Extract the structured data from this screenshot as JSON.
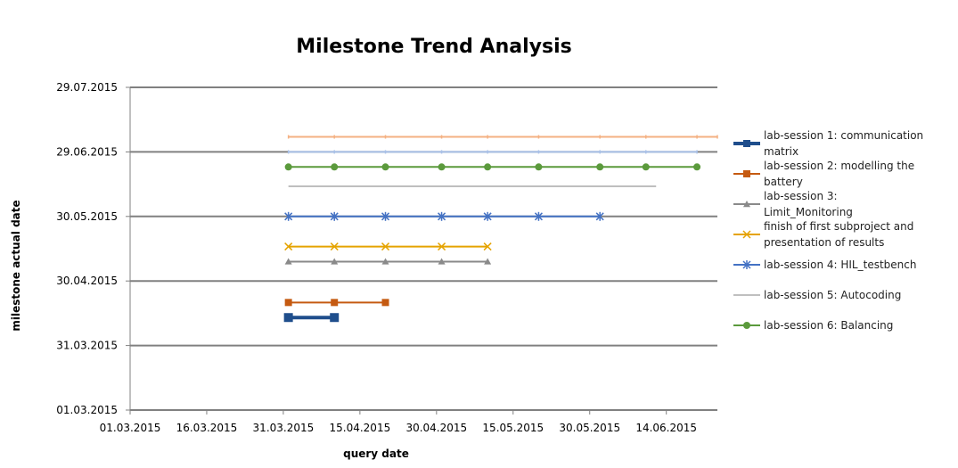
{
  "chart_data": {
    "type": "line",
    "title": "Milestone Trend Analysis",
    "xlabel": "query date",
    "ylabel": "milestone actual date",
    "x_ticks": [
      "01.03.2015",
      "16.03.2015",
      "31.03.2015",
      "15.04.2015",
      "30.04.2015",
      "15.05.2015",
      "30.05.2015",
      "14.06.2015"
    ],
    "y_ticks": [
      "01.03.2015",
      "31.03.2015",
      "30.04.2015",
      "30.05.2015",
      "29.06.2015",
      "29.07.2015"
    ],
    "xlim": [
      "2015-03-01",
      "2015-06-24"
    ],
    "ylim": [
      "2015-03-01",
      "2015-07-29"
    ],
    "grid": "horizontal",
    "legend_position": "right",
    "series": [
      {
        "name": "lab-session 1: communication matrix",
        "color": "#1f4e8c",
        "marker": "square",
        "line_width": 4,
        "x": [
          "2015-04-01",
          "2015-04-10"
        ],
        "y": [
          "2015-04-13",
          "2015-04-13"
        ]
      },
      {
        "name": "lab-session 2: modelling the battery",
        "color": "#c55a11",
        "marker": "square",
        "line_width": 2,
        "x": [
          "2015-04-01",
          "2015-04-10",
          "2015-04-20"
        ],
        "y": [
          "2015-04-20",
          "2015-04-20",
          "2015-04-20"
        ]
      },
      {
        "name": "lab-session 3: Limit_Monitoring",
        "color": "#8a8a8a",
        "marker": "triangle",
        "line_width": 2,
        "x": [
          "2015-04-01",
          "2015-04-10",
          "2015-04-20",
          "2015-05-01",
          "2015-05-10"
        ],
        "y": [
          "2015-05-09",
          "2015-05-09",
          "2015-05-09",
          "2015-05-09",
          "2015-05-09"
        ]
      },
      {
        "name": "finish of first subproject and presentation of results",
        "color": "#e5a300",
        "marker": "x",
        "line_width": 2,
        "x": [
          "2015-04-01",
          "2015-04-10",
          "2015-04-20",
          "2015-05-01",
          "2015-05-10"
        ],
        "y": [
          "2015-05-16",
          "2015-05-16",
          "2015-05-16",
          "2015-05-16",
          "2015-05-16"
        ]
      },
      {
        "name": "lab-session 4: HIL_testbench",
        "color": "#4472c4",
        "marker": "star",
        "line_width": 2,
        "x": [
          "2015-04-01",
          "2015-04-10",
          "2015-04-20",
          "2015-05-01",
          "2015-05-10",
          "2015-05-20",
          "2015-06-01"
        ],
        "y": [
          "2015-05-30",
          "2015-05-30",
          "2015-05-30",
          "2015-05-30",
          "2015-05-30",
          "2015-05-30",
          "2015-05-30"
        ]
      },
      {
        "name": "lab-session 5: Autocoding",
        "color": "#bfbfbf",
        "marker": "none",
        "line_width": 2,
        "x": [
          "2015-04-01",
          "2015-06-12"
        ],
        "y": [
          "2015-06-13",
          "2015-06-13"
        ]
      },
      {
        "name": "lab-session 6: Balancing",
        "color": "#5b9a3c",
        "marker": "circle",
        "line_width": 2,
        "x": [
          "2015-04-01",
          "2015-04-10",
          "2015-04-20",
          "2015-05-01",
          "2015-05-10",
          "2015-05-20",
          "2015-06-01",
          "2015-06-10",
          "2015-06-20"
        ],
        "y": [
          "2015-06-22",
          "2015-06-22",
          "2015-06-22",
          "2015-06-22",
          "2015-06-22",
          "2015-06-22",
          "2015-06-22",
          "2015-06-22",
          "2015-06-22"
        ]
      },
      {
        "color": "#a9c1e8",
        "marker": "small-dash",
        "line_width": 2,
        "x": [
          "2015-04-01",
          "2015-04-10",
          "2015-04-20",
          "2015-05-01",
          "2015-05-10",
          "2015-05-20",
          "2015-06-01",
          "2015-06-10",
          "2015-06-20"
        ],
        "y": [
          "2015-06-29",
          "2015-06-29",
          "2015-06-29",
          "2015-06-29",
          "2015-06-29",
          "2015-06-29",
          "2015-06-29",
          "2015-06-29",
          "2015-06-29"
        ]
      },
      {
        "color": "#f4b183",
        "marker": "small-dash",
        "line_width": 2,
        "x": [
          "2015-04-01",
          "2015-04-10",
          "2015-04-20",
          "2015-05-01",
          "2015-05-10",
          "2015-05-20",
          "2015-06-01",
          "2015-06-10",
          "2015-06-20",
          "2015-06-24"
        ],
        "y": [
          "2015-07-06",
          "2015-07-06",
          "2015-07-06",
          "2015-07-06",
          "2015-07-06",
          "2015-07-06",
          "2015-07-06",
          "2015-07-06",
          "2015-07-06",
          "2015-07-06"
        ]
      }
    ]
  }
}
